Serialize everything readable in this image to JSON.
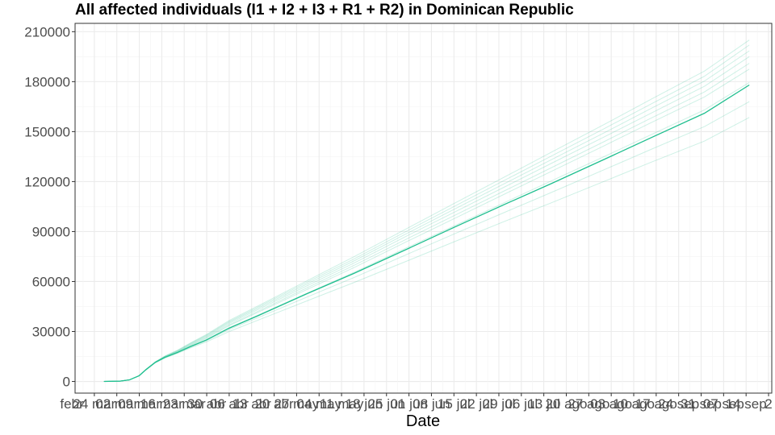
{
  "chart_data": {
    "type": "line",
    "title": "All affected individuals (I1 + I2 + I3 + R1 + R2) in  Dominican Republic",
    "xlabel": "Date",
    "ylabel": "",
    "ylim": [
      -7000,
      215000
    ],
    "yticks": [
      0,
      30000,
      60000,
      90000,
      120000,
      150000,
      180000,
      210000
    ],
    "ytick_labels": [
      "0",
      "30000",
      "60000",
      "90000",
      "120000",
      "150000",
      "180000",
      "210000"
    ],
    "xlim": [
      "2020-02-18",
      "2020-09-22"
    ],
    "xticks": [
      "2020-02-17",
      "2020-02-24",
      "2020-03-02",
      "2020-03-09",
      "2020-03-16",
      "2020-03-23",
      "2020-03-30",
      "2020-04-06",
      "2020-04-13",
      "2020-04-20",
      "2020-04-27",
      "2020-05-04",
      "2020-05-11",
      "2020-05-18",
      "2020-05-25",
      "2020-06-01",
      "2020-06-08",
      "2020-06-15",
      "2020-06-22",
      "2020-06-29",
      "2020-07-06",
      "2020-07-13",
      "2020-07-20",
      "2020-07-27",
      "2020-08-03",
      "2020-08-10",
      "2020-08-17",
      "2020-08-24",
      "2020-08-31",
      "2020-09-07",
      "2020-09-14",
      "2020-09-21"
    ],
    "xtick_labels": [
      "febr",
      "24 mar",
      "02 mar",
      "09 mar",
      "16 mar",
      "23 mar",
      "30 abr",
      "06 abr",
      "13 abr",
      "20 abr",
      "27 may",
      "04 may",
      "11 may",
      "18 jun",
      "25 jun",
      "01 jun",
      "08 jun",
      "15 jul",
      "22 jul",
      "29 jul",
      "06 jul",
      "13 jul",
      "20 ago",
      "27 ago",
      "03 ago",
      "10 ago",
      "17 ago",
      "24 sep",
      "31 sep",
      "07 sep",
      "14 sep",
      "2"
    ],
    "grid": true,
    "legend": "none",
    "series_color": "#1fbf8f",
    "series": [
      {
        "role": "median",
        "x": [
          "2020-02-27",
          "2020-03-03",
          "2020-03-06",
          "2020-03-09",
          "2020-03-11",
          "2020-03-14",
          "2020-03-17",
          "2020-03-21",
          "2020-03-25",
          "2020-03-30",
          "2020-04-06",
          "2020-04-15",
          "2020-04-30",
          "2020-05-15",
          "2020-06-01",
          "2020-06-15",
          "2020-07-01",
          "2020-07-15",
          "2020-08-01",
          "2020-08-15",
          "2020-09-01",
          "2020-09-15"
        ],
        "values": [
          0,
          200,
          1000,
          3500,
          7000,
          11500,
          14500,
          17500,
          21000,
          25000,
          32000,
          39500,
          52500,
          65000,
          80000,
          92500,
          106500,
          118500,
          133500,
          146000,
          161000,
          178000
        ]
      },
      {
        "role": "simulation",
        "x": [
          "2020-02-27",
          "2020-03-03",
          "2020-03-06",
          "2020-03-09",
          "2020-03-11",
          "2020-03-14",
          "2020-03-17",
          "2020-03-21",
          "2020-03-25",
          "2020-03-30",
          "2020-04-06",
          "2020-04-15",
          "2020-04-30",
          "2020-05-15",
          "2020-06-01",
          "2020-06-15",
          "2020-07-01",
          "2020-07-15",
          "2020-08-01",
          "2020-08-15",
          "2020-09-01",
          "2020-09-15"
        ],
        "values": [
          0,
          200,
          1000,
          3500,
          7000,
          11700,
          15000,
          18400,
          22600,
          27500,
          35500,
          44000,
          58300,
          72500,
          89500,
          103300,
          119000,
          132800,
          149500,
          163500,
          180300,
          198500
        ]
      },
      {
        "role": "simulation",
        "x": [
          "2020-02-27",
          "2020-03-03",
          "2020-03-06",
          "2020-03-09",
          "2020-03-11",
          "2020-03-14",
          "2020-03-17",
          "2020-03-21",
          "2020-03-25",
          "2020-03-30",
          "2020-04-06",
          "2020-04-15",
          "2020-04-30",
          "2020-05-15",
          "2020-06-01",
          "2020-06-15",
          "2020-07-01",
          "2020-07-15",
          "2020-08-01",
          "2020-08-15",
          "2020-09-01",
          "2020-09-15"
        ],
        "values": [
          0,
          200,
          1000,
          3500,
          7000,
          11600,
          14800,
          18000,
          21800,
          26500,
          34000,
          42200,
          56000,
          69800,
          86200,
          99500,
          114700,
          128000,
          144200,
          157700,
          173800,
          191000
        ]
      },
      {
        "role": "simulation",
        "x": [
          "2020-02-27",
          "2020-03-03",
          "2020-03-06",
          "2020-03-09",
          "2020-03-11",
          "2020-03-14",
          "2020-03-17",
          "2020-03-21",
          "2020-03-25",
          "2020-03-30",
          "2020-04-06",
          "2020-04-15",
          "2020-04-30",
          "2020-05-15",
          "2020-06-01",
          "2020-06-15",
          "2020-07-01",
          "2020-07-15",
          "2020-08-01",
          "2020-08-15",
          "2020-09-01",
          "2020-09-15"
        ],
        "values": [
          0,
          200,
          1000,
          3500,
          7000,
          11800,
          15300,
          18900,
          23200,
          28300,
          36600,
          45400,
          60200,
          75000,
          92500,
          106800,
          123000,
          137300,
          154500,
          169000,
          186300,
          205000
        ]
      },
      {
        "role": "simulation",
        "x": [
          "2020-02-27",
          "2020-03-03",
          "2020-03-06",
          "2020-03-09",
          "2020-03-11",
          "2020-03-14",
          "2020-03-17",
          "2020-03-21",
          "2020-03-25",
          "2020-03-30",
          "2020-04-06",
          "2020-04-15",
          "2020-04-30",
          "2020-05-15",
          "2020-06-01",
          "2020-06-15",
          "2020-07-01",
          "2020-07-15",
          "2020-08-01",
          "2020-08-15",
          "2020-09-01",
          "2020-09-15"
        ],
        "values": [
          0,
          200,
          1000,
          3500,
          7000,
          11500,
          14600,
          17800,
          21500,
          26000,
          33500,
          41500,
          55000,
          68500,
          84600,
          97700,
          112700,
          125800,
          141700,
          155000,
          170800,
          187500
        ]
      },
      {
        "role": "simulation",
        "x": [
          "2020-02-27",
          "2020-03-03",
          "2020-03-06",
          "2020-03-09",
          "2020-03-11",
          "2020-03-14",
          "2020-03-17",
          "2020-03-21",
          "2020-03-25",
          "2020-03-30",
          "2020-04-06",
          "2020-04-15",
          "2020-04-30",
          "2020-05-15",
          "2020-06-01",
          "2020-06-15",
          "2020-07-01",
          "2020-07-15",
          "2020-08-01",
          "2020-08-15",
          "2020-09-01",
          "2020-09-15"
        ],
        "values": [
          0,
          200,
          1000,
          3400,
          6800,
          11300,
          14300,
          17300,
          20600,
          24500,
          31200,
          38300,
          50500,
          62500,
          76800,
          88500,
          101700,
          113200,
          127300,
          139000,
          153000,
          168000
        ]
      },
      {
        "role": "simulation",
        "x": [
          "2020-02-27",
          "2020-03-03",
          "2020-03-06",
          "2020-03-09",
          "2020-03-11",
          "2020-03-14",
          "2020-03-17",
          "2020-03-21",
          "2020-03-25",
          "2020-03-30",
          "2020-04-06",
          "2020-04-15",
          "2020-04-30",
          "2020-05-15",
          "2020-06-01",
          "2020-06-15",
          "2020-07-01",
          "2020-07-15",
          "2020-08-01",
          "2020-08-15",
          "2020-09-01",
          "2020-09-15"
        ],
        "values": [
          0,
          200,
          1000,
          3400,
          6800,
          11200,
          14100,
          17000,
          20200,
          23800,
          30000,
          36800,
          48200,
          59500,
          72800,
          83800,
          96300,
          107000,
          120300,
          131300,
          144300,
          158500
        ]
      },
      {
        "role": "simulation",
        "x": [
          "2020-02-27",
          "2020-03-03",
          "2020-03-06",
          "2020-03-09",
          "2020-03-11",
          "2020-03-14",
          "2020-03-17",
          "2020-03-21",
          "2020-03-25",
          "2020-03-30",
          "2020-04-06",
          "2020-04-15",
          "2020-04-30",
          "2020-05-15",
          "2020-06-01",
          "2020-06-15",
          "2020-07-01",
          "2020-07-15",
          "2020-08-01",
          "2020-08-15",
          "2020-09-01",
          "2020-09-15"
        ],
        "values": [
          0,
          200,
          1000,
          3500,
          7000,
          11700,
          15100,
          18600,
          22900,
          27900,
          36000,
          44700,
          59300,
          73700,
          91000,
          105000,
          121000,
          135000,
          152000,
          166200,
          183200,
          202000
        ]
      },
      {
        "role": "simulation",
        "x": [
          "2020-02-27",
          "2020-03-03",
          "2020-03-06",
          "2020-03-09",
          "2020-03-11",
          "2020-03-14",
          "2020-03-17",
          "2020-03-21",
          "2020-03-25",
          "2020-03-30",
          "2020-04-06",
          "2020-04-15",
          "2020-04-30",
          "2020-05-15",
          "2020-06-01",
          "2020-06-15",
          "2020-07-01",
          "2020-07-15",
          "2020-08-01",
          "2020-08-15",
          "2020-09-01",
          "2020-09-15"
        ],
        "values": [
          0,
          200,
          1000,
          3500,
          7000,
          11600,
          14900,
          18200,
          22200,
          27000,
          34800,
          43200,
          57200,
          71200,
          88000,
          101500,
          117000,
          130600,
          147000,
          160700,
          177200,
          195000
        ]
      },
      {
        "role": "simulation",
        "x": [
          "2020-02-27",
          "2020-03-03",
          "2020-03-06",
          "2020-03-09",
          "2020-03-11",
          "2020-03-14",
          "2020-03-17",
          "2020-03-21",
          "2020-03-25",
          "2020-03-30",
          "2020-04-06",
          "2020-04-15",
          "2020-04-30",
          "2020-05-15",
          "2020-06-01",
          "2020-06-15",
          "2020-07-01",
          "2020-07-15",
          "2020-08-01",
          "2020-08-15",
          "2020-09-01",
          "2020-09-15"
        ],
        "values": [
          0,
          200,
          1000,
          3450,
          6900,
          11400,
          14400,
          17500,
          21000,
          25200,
          32300,
          39900,
          52800,
          65600,
          80900,
          93300,
          107600,
          120100,
          135200,
          147800,
          163000,
          179500
        ]
      }
    ]
  }
}
